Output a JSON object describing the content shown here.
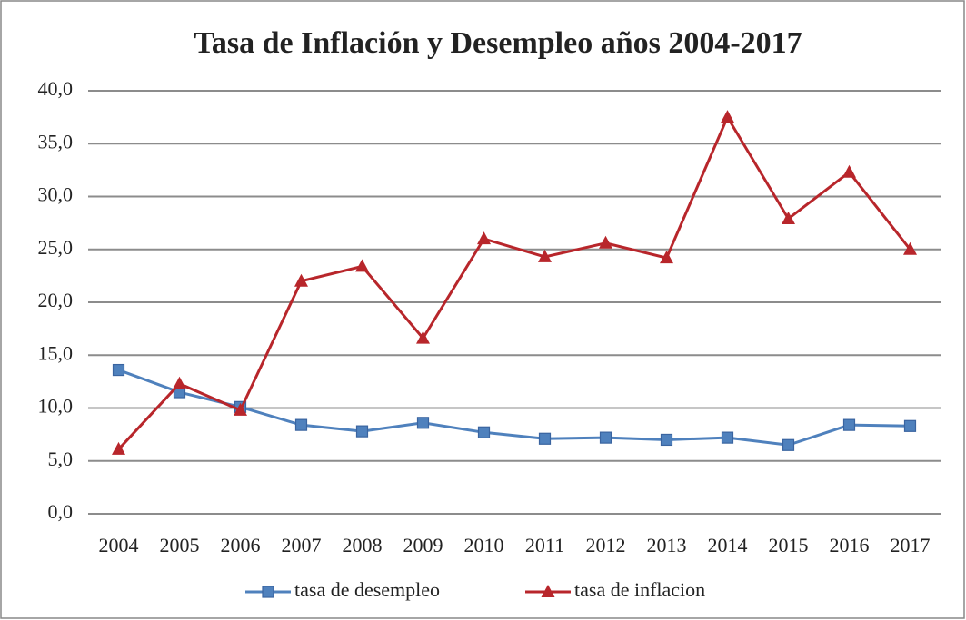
{
  "chart_data": {
    "type": "line",
    "title": "Tasa de Inflación y Desempleo años 2004-2017",
    "categories": [
      "2004",
      "2005",
      "2006",
      "2007",
      "2008",
      "2009",
      "2010",
      "2011",
      "2012",
      "2013",
      "2014",
      "2015",
      "2016",
      "2017"
    ],
    "series": [
      {
        "name": "tasa de desempleo",
        "color": "#4f81bd",
        "marker": "square",
        "values": [
          13.6,
          11.5,
          10.1,
          8.4,
          7.8,
          8.6,
          7.7,
          7.1,
          7.2,
          7.0,
          7.2,
          6.5,
          8.4,
          8.3
        ]
      },
      {
        "name": "tasa de inflacion",
        "color": "#b8262b",
        "marker": "triangle",
        "values": [
          6.1,
          12.3,
          9.8,
          22.0,
          23.4,
          16.6,
          26.0,
          24.3,
          25.6,
          24.2,
          37.5,
          27.9,
          32.3,
          25.0
        ]
      }
    ],
    "ylim": [
      0,
      40
    ],
    "yticks": [
      {
        "value": 0,
        "label": "0,0"
      },
      {
        "value": 5,
        "label": "5,0"
      },
      {
        "value": 10,
        "label": "10,0"
      },
      {
        "value": 15,
        "label": "15,0"
      },
      {
        "value": 20,
        "label": "20,0"
      },
      {
        "value": 25,
        "label": "25,0"
      },
      {
        "value": 30,
        "label": "30,0"
      },
      {
        "value": 35,
        "label": "35,0"
      },
      {
        "value": 40,
        "label": "40,0"
      }
    ],
    "grid": true,
    "legend": "bottom"
  }
}
